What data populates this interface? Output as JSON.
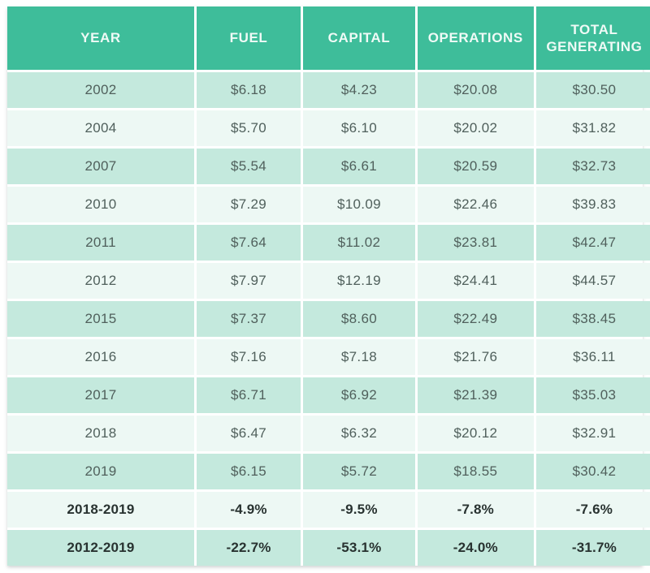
{
  "colors": {
    "header_bg": "#3EBD9A",
    "header_text": "#EFFAF6",
    "row_dark_bg": "#C4E9DD",
    "row_light_bg": "#EDF8F4",
    "body_text": "#50605C",
    "bold_text": "#283230",
    "gutter": "#FFFFFF"
  },
  "table": {
    "columns": [
      "YEAR",
      "FUEL",
      "CAPITAL",
      "OPERATIONS",
      "TOTAL GENERATING"
    ],
    "rows": [
      [
        "2002",
        "$6.18",
        "$4.23",
        "$20.08",
        "$30.50"
      ],
      [
        "2004",
        "$5.70",
        "$6.10",
        "$20.02",
        "$31.82"
      ],
      [
        "2007",
        "$5.54",
        "$6.61",
        "$20.59",
        "$32.73"
      ],
      [
        "2010",
        "$7.29",
        "$10.09",
        "$22.46",
        "$39.83"
      ],
      [
        "2011",
        "$7.64",
        "$11.02",
        "$23.81",
        "$42.47"
      ],
      [
        "2012",
        "$7.97",
        "$12.19",
        "$24.41",
        "$44.57"
      ],
      [
        "2015",
        "$7.37",
        "$8.60",
        "$22.49",
        "$38.45"
      ],
      [
        "2016",
        "$7.16",
        "$7.18",
        "$21.76",
        "$36.11"
      ],
      [
        "2017",
        "$6.71",
        "$6.92",
        "$21.39",
        "$35.03"
      ],
      [
        "2018",
        "$6.47",
        "$6.32",
        "$20.12",
        "$32.91"
      ],
      [
        "2019",
        "$6.15",
        "$5.72",
        "$18.55",
        "$30.42"
      ],
      [
        "2018-2019",
        "-4.9%",
        "-9.5%",
        "-7.8%",
        "-7.6%"
      ],
      [
        "2012-2019",
        "-22.7%",
        "-53.1%",
        "-24.0%",
        "-31.7%"
      ]
    ]
  },
  "chart_data": {
    "type": "table",
    "title": "",
    "columns": [
      "YEAR",
      "FUEL",
      "CAPITAL",
      "OPERATIONS",
      "TOTAL GENERATING"
    ],
    "units": "dollars",
    "rows": [
      {
        "year": "2002",
        "fuel": 6.18,
        "capital": 4.23,
        "operations": 20.08,
        "total_generating": 30.5
      },
      {
        "year": "2004",
        "fuel": 5.7,
        "capital": 6.1,
        "operations": 20.02,
        "total_generating": 31.82
      },
      {
        "year": "2007",
        "fuel": 5.54,
        "capital": 6.61,
        "operations": 20.59,
        "total_generating": 32.73
      },
      {
        "year": "2010",
        "fuel": 7.29,
        "capital": 10.09,
        "operations": 22.46,
        "total_generating": 39.83
      },
      {
        "year": "2011",
        "fuel": 7.64,
        "capital": 11.02,
        "operations": 23.81,
        "total_generating": 42.47
      },
      {
        "year": "2012",
        "fuel": 7.97,
        "capital": 12.19,
        "operations": 24.41,
        "total_generating": 44.57
      },
      {
        "year": "2015",
        "fuel": 7.37,
        "capital": 8.6,
        "operations": 22.49,
        "total_generating": 38.45
      },
      {
        "year": "2016",
        "fuel": 7.16,
        "capital": 7.18,
        "operations": 21.76,
        "total_generating": 36.11
      },
      {
        "year": "2017",
        "fuel": 6.71,
        "capital": 6.92,
        "operations": 21.39,
        "total_generating": 35.03
      },
      {
        "year": "2018",
        "fuel": 6.47,
        "capital": 6.32,
        "operations": 20.12,
        "total_generating": 32.91
      },
      {
        "year": "2019",
        "fuel": 6.15,
        "capital": 5.72,
        "operations": 18.55,
        "total_generating": 30.42
      }
    ],
    "percent_change_rows": [
      {
        "period": "2018-2019",
        "fuel_pct": -4.9,
        "capital_pct": -9.5,
        "operations_pct": -7.8,
        "total_generating_pct": -7.6
      },
      {
        "period": "2012-2019",
        "fuel_pct": -22.7,
        "capital_pct": -53.1,
        "operations_pct": -24.0,
        "total_generating_pct": -31.7
      }
    ]
  }
}
